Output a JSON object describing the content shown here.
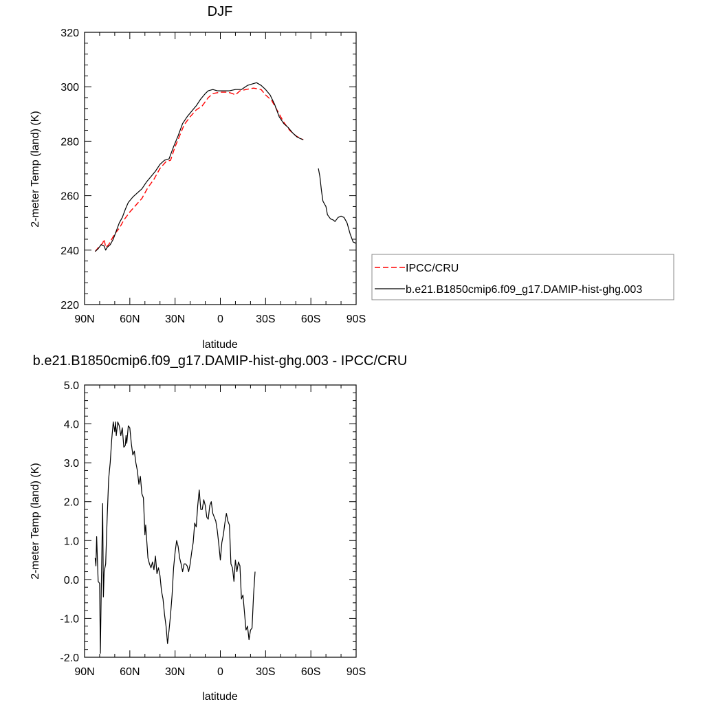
{
  "chart_data": [
    {
      "type": "line",
      "title": "DJF",
      "xlabel": "latitude",
      "ylabel": "2-meter Temp (land) (K)",
      "xlim": [
        -90,
        90
      ],
      "ylim": [
        220,
        320
      ],
      "x_ticks": [
        -90,
        -60,
        -30,
        0,
        30,
        60,
        90
      ],
      "x_tick_labels": [
        "90N",
        "60N",
        "30N",
        "0",
        "30S",
        "60S",
        "90S"
      ],
      "y_ticks": [
        220,
        240,
        260,
        280,
        300,
        320
      ],
      "y_tick_labels": [
        "220",
        "240",
        "260",
        "280",
        "300",
        "320"
      ],
      "legend": {
        "placement": "outside-right",
        "entries": [
          "IPCC/CRU",
          "b.e21.B1850cmip6.f09_g17.DAMIP-hist-ghg.003"
        ]
      },
      "series": [
        {
          "name": "IPCC/CRU",
          "color": "#ff0000",
          "dash": "dashed",
          "segments": [
            [
              [
                -83,
                239.5
              ],
              [
                -80,
                241.5
              ],
              [
                -78,
                242.5
              ],
              [
                -77,
                244
              ],
              [
                -76,
                241
              ],
              [
                -74,
                242
              ],
              [
                -72,
                244
              ],
              [
                -70,
                246
              ],
              [
                -67,
                248
              ],
              [
                -64,
                251
              ],
              [
                -60,
                254
              ],
              [
                -56,
                256.5
              ],
              [
                -52,
                259
              ],
              [
                -48,
                263
              ],
              [
                -44,
                266
              ],
              [
                -40,
                270
              ],
              [
                -36,
                272.5
              ],
              [
                -33,
                273
              ],
              [
                -30,
                278
              ],
              [
                -27,
                282
              ],
              [
                -24,
                286
              ],
              [
                -20,
                289
              ],
              [
                -16,
                291.5
              ],
              [
                -12,
                293
              ],
              [
                -8,
                296
              ],
              [
                -5,
                297.5
              ],
              [
                0,
                298
              ],
              [
                5,
                298
              ],
              [
                8,
                297.5
              ],
              [
                10,
                297
              ],
              [
                13,
                298.5
              ],
              [
                17,
                299
              ],
              [
                22,
                299.5
              ],
              [
                27,
                299
              ],
              [
                30,
                297
              ],
              [
                34,
                295
              ],
              [
                38,
                291
              ],
              [
                42,
                287
              ],
              [
                46,
                284
              ],
              [
                50,
                282
              ],
              [
                55,
                280.5
              ]
            ]
          ]
        },
        {
          "name": "b.e21.B1850cmip6.f09_g17.DAMIP-hist-ghg.003",
          "color": "#000000",
          "dash": "solid",
          "segments": [
            [
              [
                -83,
                239.5
              ],
              [
                -81,
                240.5
              ],
              [
                -79,
                242
              ],
              [
                -77,
                241.5
              ],
              [
                -76,
                240
              ],
              [
                -75,
                241
              ],
              [
                -73,
                242
              ],
              [
                -71,
                244
              ],
              [
                -69,
                247
              ],
              [
                -67,
                250
              ],
              [
                -65,
                252
              ],
              [
                -63,
                255
              ],
              [
                -61,
                257.5
              ],
              [
                -58,
                259.5
              ],
              [
                -55,
                261
              ],
              [
                -52,
                262.5
              ],
              [
                -49,
                265
              ],
              [
                -46,
                267
              ],
              [
                -43,
                269
              ],
              [
                -40,
                271.5
              ],
              [
                -37,
                273
              ],
              [
                -34,
                273.5
              ],
              [
                -31,
                278
              ],
              [
                -28,
                282
              ],
              [
                -25,
                286.5
              ],
              [
                -22,
                289
              ],
              [
                -19,
                291
              ],
              [
                -16,
                293
              ],
              [
                -13,
                295.5
              ],
              [
                -10,
                297.5
              ],
              [
                -8,
                298.5
              ],
              [
                -5,
                299
              ],
              [
                -2,
                298.5
              ],
              [
                2,
                298.5
              ],
              [
                6,
                298.5
              ],
              [
                10,
                299
              ],
              [
                14,
                299
              ],
              [
                18,
                300.5
              ],
              [
                21,
                301
              ],
              [
                24,
                301.5
              ],
              [
                27,
                300.5
              ],
              [
                30,
                299
              ],
              [
                33,
                297
              ],
              [
                36,
                293.5
              ],
              [
                39,
                289
              ],
              [
                42,
                286.5
              ],
              [
                45,
                285
              ],
              [
                48,
                283
              ],
              [
                51,
                281.5
              ],
              [
                55,
                280.5
              ]
            ],
            [
              [
                65,
                270
              ],
              [
                66,
                267
              ],
              [
                67,
                262
              ],
              [
                68,
                258
              ],
              [
                70,
                256
              ],
              [
                71,
                253
              ],
              [
                73,
                251.5
              ],
              [
                75,
                251
              ],
              [
                76,
                250.5
              ],
              [
                78,
                252
              ],
              [
                80,
                252.5
              ],
              [
                82,
                252
              ],
              [
                84,
                250
              ],
              [
                86,
                246
              ],
              [
                88,
                243
              ],
              [
                90,
                242.5
              ]
            ]
          ]
        }
      ]
    },
    {
      "type": "line",
      "title": "b.e21.B1850cmip6.f09_g17.DAMIP-hist-ghg.003 - IPCC/CRU",
      "xlabel": "latitude",
      "ylabel": "2-meter Temp (land) (K)",
      "xlim": [
        -90,
        90
      ],
      "ylim": [
        -2.0,
        5.0
      ],
      "x_ticks": [
        -90,
        -60,
        -30,
        0,
        30,
        60,
        90
      ],
      "x_tick_labels": [
        "90N",
        "60N",
        "30N",
        "0",
        "30S",
        "60S",
        "90S"
      ],
      "y_ticks": [
        -2,
        -1,
        0,
        1,
        2,
        3,
        4,
        5
      ],
      "y_tick_labels": [
        "-2.0",
        "-1.0",
        "0.0",
        "1.0",
        "2.0",
        "3.0",
        "4.0",
        "5.0"
      ],
      "series": [
        {
          "color": "#000000",
          "dash": "solid",
          "segments": [
            [
              [
                -83,
                0.55
              ],
              [
                -82.5,
                0.35
              ],
              [
                -82,
                1.1
              ],
              [
                -81.5,
                0.5
              ],
              [
                -81,
                -0.05
              ],
              [
                -80,
                -0.1
              ],
              [
                -79.5,
                -1.9
              ],
              [
                -79,
                -0.5
              ],
              [
                -78,
                1.95
              ],
              [
                -77.5,
                -0.45
              ],
              [
                -77,
                0.2
              ],
              [
                -76,
                0.4
              ],
              [
                -75,
                1.6
              ],
              [
                -74,
                2.6
              ],
              [
                -73,
                3.0
              ],
              [
                -72,
                3.6
              ],
              [
                -71,
                4.05
              ],
              [
                -70,
                3.8
              ],
              [
                -69.5,
                4.05
              ],
              [
                -69,
                3.7
              ],
              [
                -68,
                4.05
              ],
              [
                -67,
                3.95
              ],
              [
                -66,
                3.7
              ],
              [
                -65,
                3.9
              ],
              [
                -64,
                3.4
              ],
              [
                -63,
                3.45
              ],
              [
                -62.5,
                3.7
              ],
              [
                -62,
                3.5
              ],
              [
                -61,
                3.95
              ],
              [
                -60,
                3.9
              ],
              [
                -59,
                3.5
              ],
              [
                -58,
                3.2
              ],
              [
                -57,
                3.3
              ],
              [
                -56,
                3.0
              ],
              [
                -55,
                2.8
              ],
              [
                -54,
                2.45
              ],
              [
                -53,
                2.65
              ],
              [
                -52,
                2.2
              ],
              [
                -51,
                2.1
              ],
              [
                -50,
                1.15
              ],
              [
                -49.5,
                1.4
              ],
              [
                -48,
                0.55
              ],
              [
                -47,
                0.4
              ],
              [
                -46,
                0.3
              ],
              [
                -45,
                0.45
              ],
              [
                -44,
                0.25
              ],
              [
                -43,
                0.6
              ],
              [
                -42,
                0.15
              ],
              [
                -41,
                0.3
              ],
              [
                -40,
                0.1
              ],
              [
                -39,
                -0.3
              ],
              [
                -38,
                -0.5
              ],
              [
                -37,
                -0.9
              ],
              [
                -36,
                -1.2
              ],
              [
                -35,
                -1.65
              ],
              [
                -34,
                -1.3
              ],
              [
                -33,
                -0.9
              ],
              [
                -32,
                -0.4
              ],
              [
                -31,
                0.3
              ],
              [
                -30,
                0.7
              ],
              [
                -29,
                1.0
              ],
              [
                -28,
                0.85
              ],
              [
                -27,
                0.55
              ],
              [
                -26,
                0.4
              ],
              [
                -25,
                0.2
              ],
              [
                -24,
                0.4
              ],
              [
                -23,
                0.4
              ],
              [
                -22,
                0.35
              ],
              [
                -21,
                0.2
              ],
              [
                -20,
                0.4
              ],
              [
                -19,
                0.7
              ],
              [
                -18,
                0.95
              ],
              [
                -17,
                1.45
              ],
              [
                -16,
                1.35
              ],
              [
                -15,
                1.9
              ],
              [
                -14,
                2.3
              ],
              [
                -13,
                1.8
              ],
              [
                -12,
                1.8
              ],
              [
                -11,
                2.05
              ],
              [
                -10,
                1.9
              ],
              [
                -9,
                1.6
              ],
              [
                -8,
                1.55
              ],
              [
                -7,
                1.9
              ],
              [
                -6,
                2.0
              ],
              [
                -5,
                1.7
              ],
              [
                -4,
                1.6
              ],
              [
                -3,
                1.5
              ],
              [
                -2,
                1.25
              ],
              [
                -1,
                0.9
              ],
              [
                0,
                0.5
              ],
              [
                1,
                0.95
              ],
              [
                2,
                1.15
              ],
              [
                3,
                1.45
              ],
              [
                4,
                1.7
              ],
              [
                5,
                1.5
              ],
              [
                6,
                1.4
              ],
              [
                7,
                0.4
              ],
              [
                8,
                0.3
              ],
              [
                9,
                -0.05
              ],
              [
                10,
                0.5
              ],
              [
                11,
                0.2
              ],
              [
                12,
                0.45
              ],
              [
                13,
                0.35
              ],
              [
                14,
                -0.5
              ],
              [
                15,
                -0.4
              ],
              [
                16,
                -0.85
              ],
              [
                17,
                -1.3
              ],
              [
                18,
                -1.2
              ],
              [
                19,
                -1.55
              ],
              [
                20,
                -1.3
              ],
              [
                21,
                -1.25
              ],
              [
                22,
                -0.4
              ],
              [
                23,
                0.2
              ]
            ]
          ]
        }
      ]
    }
  ]
}
